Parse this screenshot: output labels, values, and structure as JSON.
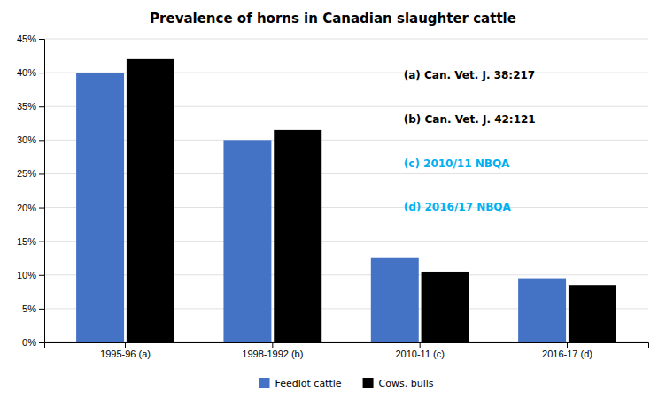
{
  "chart_data": {
    "type": "bar",
    "title": "Prevalence of horns in Canadian slaughter cattle",
    "categories": [
      "1995-96 (a)",
      "1998-1992 (b)",
      "2010-11 (c)",
      "2016-17 (d)"
    ],
    "series": [
      {
        "name": "Feedlot cattle",
        "color": "#4472C4",
        "values": [
          0.4,
          0.3,
          0.125,
          0.095
        ]
      },
      {
        "name": "Cows, bulls",
        "color": "#000000",
        "values": [
          0.42,
          0.315,
          0.105,
          0.085
        ]
      }
    ],
    "ylim": [
      0,
      0.45
    ],
    "yticks": [
      {
        "value": 0.0,
        "label": "0%"
      },
      {
        "value": 0.05,
        "label": "5%"
      },
      {
        "value": 0.1,
        "label": "10%"
      },
      {
        "value": 0.15,
        "label": "15%"
      },
      {
        "value": 0.2,
        "label": "20%"
      },
      {
        "value": 0.25,
        "label": "25%"
      },
      {
        "value": 0.3,
        "label": "30%"
      },
      {
        "value": 0.35,
        "label": "35%"
      },
      {
        "value": 0.4,
        "label": "40%"
      },
      {
        "value": 0.45,
        "label": "45%"
      }
    ],
    "grid": true,
    "legend": "bottom",
    "annotations": [
      {
        "text": "(a) Can. Vet. J. 38:217",
        "color": "#000000"
      },
      {
        "text": "(b) Can. Vet. J. 42:121",
        "color": "#000000"
      },
      {
        "text": "(c) 2010/11 NBQA",
        "color": "#00B0F0"
      },
      {
        "text": "(d) 2016/17 NBQA",
        "color": "#00B0F0"
      }
    ]
  }
}
